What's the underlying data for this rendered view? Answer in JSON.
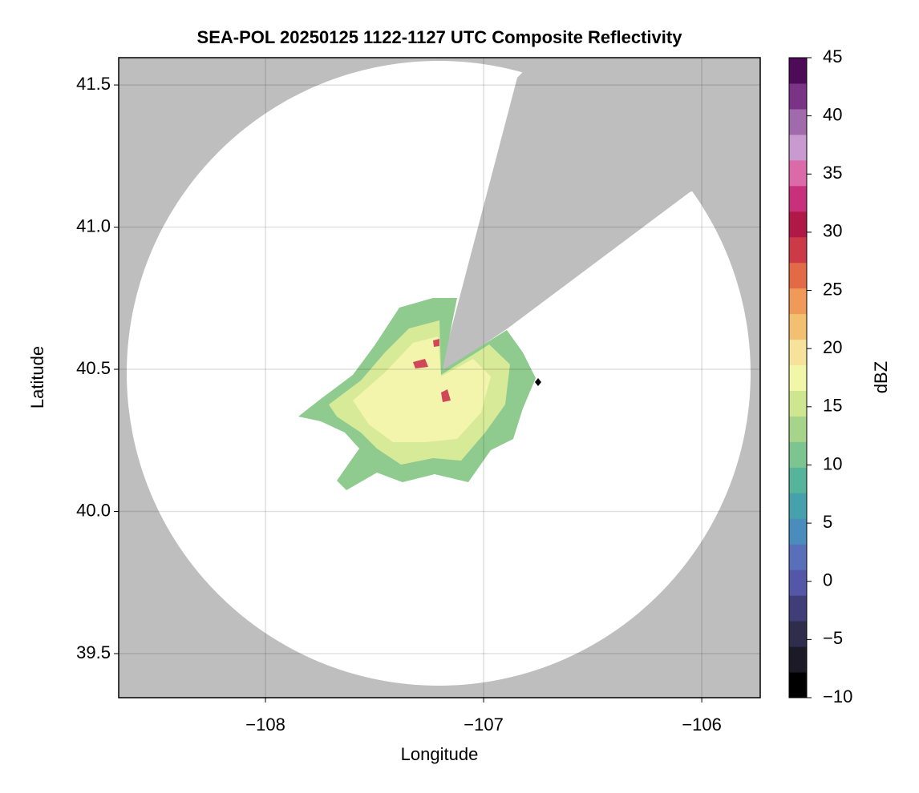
{
  "chart_data": {
    "type": "radar-map",
    "title": "SEA-POL 20250125 1122-1127 UTC Composite Reflectivity",
    "xlabel": "Longitude",
    "ylabel": "Latitude",
    "xlim": [
      -108.673,
      -105.732
    ],
    "ylim": [
      39.345,
      41.596
    ],
    "xticks": [
      {
        "value": -108,
        "label": "−108"
      },
      {
        "value": -107,
        "label": "−107"
      },
      {
        "value": -106,
        "label": "−106"
      }
    ],
    "yticks": [
      39.5,
      {
        "value": 40,
        "label": "40.0"
      },
      40.5,
      {
        "value": 41,
        "label": "41.0"
      },
      41.5
    ],
    "grid": true,
    "colorbar": {
      "label": "dBZ",
      "lim": [
        -10,
        45
      ],
      "ticks": [
        {
          "value": -10,
          "label": "−10"
        },
        {
          "value": -5,
          "label": "−5"
        },
        0,
        5,
        10,
        15,
        20,
        25,
        30,
        35,
        40,
        45
      ],
      "colors": [
        "#000000",
        "#1c1a26",
        "#302c4c",
        "#403e78",
        "#5457a8",
        "#5a6fba",
        "#4a8cbc",
        "#45a2ac",
        "#56b49a",
        "#7cc490",
        "#a6d48a",
        "#cfe690",
        "#f2f6a8",
        "#f6e29a",
        "#f2c070",
        "#ef9a58",
        "#e26a46",
        "#cc3a48",
        "#b01848",
        "#c8307c",
        "#dc6aa8",
        "#c89ad0",
        "#a06aac",
        "#7a3486",
        "#4e0c58"
      ]
    }
  }
}
